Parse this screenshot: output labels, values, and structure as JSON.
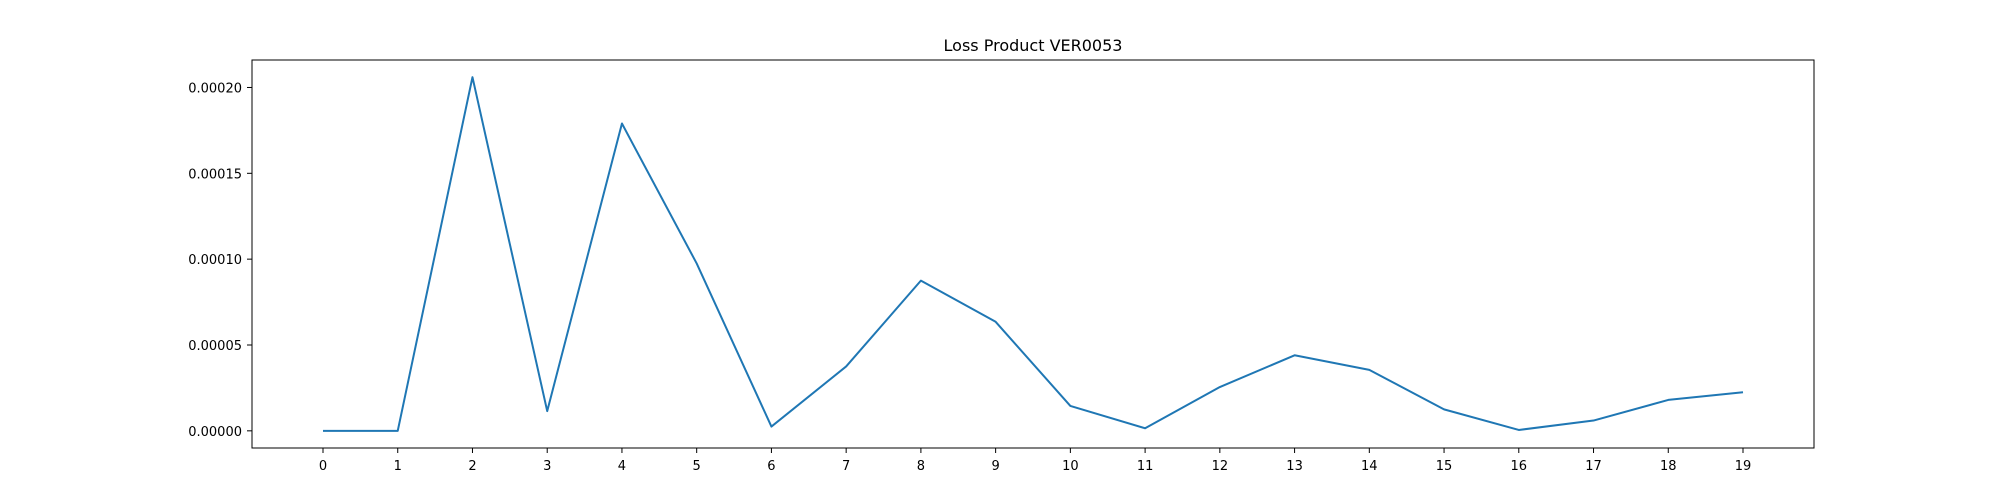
{
  "chart_data": {
    "type": "line",
    "title": "Loss Product VER0053",
    "xlabel": "",
    "ylabel": "",
    "x": [
      0,
      1,
      2,
      3,
      4,
      5,
      6,
      7,
      8,
      9,
      10,
      11,
      12,
      13,
      14,
      15,
      16,
      17,
      18,
      19
    ],
    "series": [
      {
        "values": [
          0.0,
          0.0,
          0.000206,
          1.15e-05,
          0.000179,
          9.75e-05,
          2.5e-06,
          3.75e-05,
          8.75e-05,
          6.35e-05,
          1.45e-05,
          1.5e-06,
          2.55e-05,
          4.4e-05,
          3.55e-05,
          1.25e-05,
          5e-07,
          6e-06,
          1.8e-05,
          2.25e-05
        ],
        "color": "#1f77b4"
      }
    ],
    "xlim": [
      -0.95,
      19.95
    ],
    "ylim": [
      -1e-05,
      0.000216
    ],
    "xticks": [
      "0",
      "1",
      "2",
      "3",
      "4",
      "5",
      "6",
      "7",
      "8",
      "9",
      "10",
      "11",
      "12",
      "13",
      "14",
      "15",
      "16",
      "17",
      "18",
      "19"
    ],
    "yticks": [
      0.0,
      5e-05,
      0.0001,
      0.00015,
      0.0002
    ],
    "ytick_labels": [
      "0.00000",
      "0.00005",
      "0.00010",
      "0.00015",
      "0.00020"
    ],
    "grid": false,
    "legend": "none"
  }
}
